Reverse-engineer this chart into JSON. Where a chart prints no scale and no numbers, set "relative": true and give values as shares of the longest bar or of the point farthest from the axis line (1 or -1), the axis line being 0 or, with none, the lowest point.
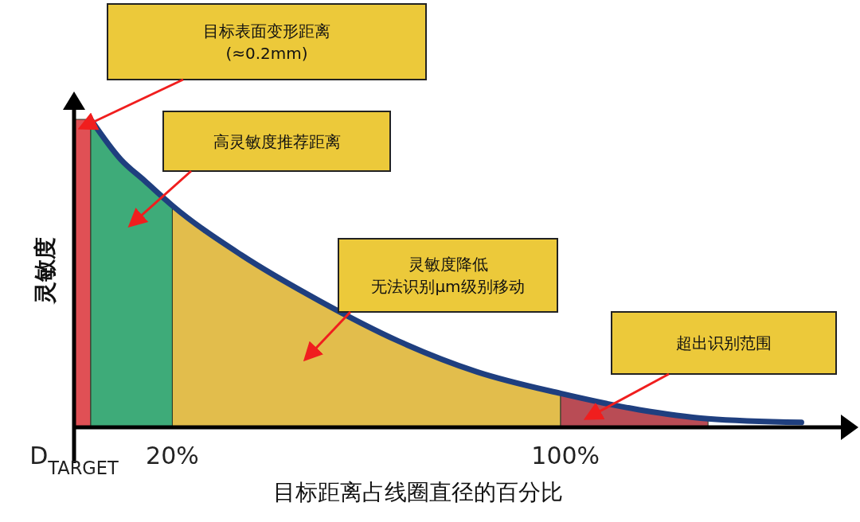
{
  "chart_data": {
    "type": "area",
    "relative": true,
    "xlabel": "目标距离占线圈直径的百分比",
    "ylabel": "灵敏度",
    "xlim": [
      0,
      157
    ],
    "xticks": [
      {
        "value": 0,
        "label": "D$_{TARGET}$"
      },
      {
        "value": 20,
        "label": "20%"
      },
      {
        "value": 100,
        "label": "100%"
      }
    ],
    "tick_labels": "x",
    "grid": false,
    "legend": false,
    "series": [
      {
        "color": "#e05055",
        "x": [
          0,
          3.4
        ],
        "values": [
          1,
          1
        ]
      },
      {
        "color": "#3eab79",
        "x": [
          3.4,
          9.5,
          14.4,
          20
        ],
        "values": [
          1,
          0.87,
          0.8,
          0.72
        ]
      },
      {
        "color": "#e2bd4c",
        "x": [
          20,
          34,
          50,
          66,
          82,
          99
        ],
        "values": [
          0.72,
          0.56,
          0.41,
          0.28,
          0.18,
          0.11
        ]
      },
      {
        "color": "#b94c55",
        "x": [
          99,
          115,
          129
        ],
        "values": [
          0.11,
          0.057,
          0.028
        ]
      },
      {
        "type": "line",
        "color": "#1f3f7f",
        "x": [
          3.4,
          9.5,
          14.4,
          20,
          34,
          50,
          66,
          82,
          99,
          115,
          129,
          148
        ],
        "values": [
          1,
          0.87,
          0.8,
          0.72,
          0.56,
          0.41,
          0.28,
          0.18,
          0.11,
          0.057,
          0.028,
          0.016
        ]
      }
    ],
    "annotations": [
      "目标表面变形距离(≈0.2mm)",
      "高灵敏度推荐距离",
      "灵敏度降低无法识别μm级别移动",
      "超出识别范围"
    ]
  }
}
